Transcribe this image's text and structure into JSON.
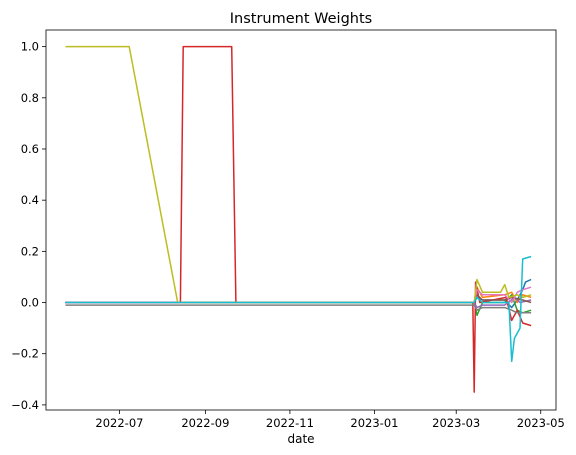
{
  "chart_data": {
    "type": "line",
    "title": "Instrument Weights",
    "xlabel": "date",
    "ylabel": "",
    "xlim": [
      "2022-05-09",
      "2023-05-12"
    ],
    "ylim": [
      -0.42,
      1.065
    ],
    "x_ticks": [
      {
        "date": "2022-07-01",
        "label": "2022-07"
      },
      {
        "date": "2022-09-01",
        "label": "2022-09"
      },
      {
        "date": "2022-11-01",
        "label": "2022-11"
      },
      {
        "date": "2023-01-01",
        "label": "2023-01"
      },
      {
        "date": "2023-03-01",
        "label": "2023-03"
      },
      {
        "date": "2023-05-01",
        "label": "2023-05"
      }
    ],
    "y_ticks": [
      {
        "value": 1.0,
        "label": "1.0"
      },
      {
        "value": 0.8,
        "label": "0.8"
      },
      {
        "value": 0.6,
        "label": "0.6"
      },
      {
        "value": 0.4,
        "label": "0.4"
      },
      {
        "value": 0.2,
        "label": "0.2"
      },
      {
        "value": 0.0,
        "label": "0.0"
      },
      {
        "value": -0.2,
        "label": "−0.2"
      },
      {
        "value": -0.4,
        "label": "−0.4"
      }
    ],
    "grid": false,
    "legend": "none",
    "series": [
      {
        "color": "#1f77b4",
        "points": [
          [
            "2022-05-23",
            0
          ],
          [
            "2023-03-14",
            0
          ],
          [
            "2023-03-16",
            0.02
          ],
          [
            "2023-03-20",
            0.01
          ],
          [
            "2023-04-05",
            0.01
          ],
          [
            "2023-04-10",
            -0.02
          ],
          [
            "2023-04-14",
            0.01
          ],
          [
            "2023-04-18",
            0.05
          ],
          [
            "2023-04-20",
            0.08
          ],
          [
            "2023-04-24",
            0.09
          ]
        ]
      },
      {
        "color": "#ff7f0e",
        "points": [
          [
            "2022-05-23",
            0
          ],
          [
            "2023-03-14",
            0
          ],
          [
            "2023-03-16",
            0.06
          ],
          [
            "2023-03-20",
            0.02
          ],
          [
            "2023-04-05",
            0.03
          ],
          [
            "2023-04-10",
            0.04
          ],
          [
            "2023-04-14",
            0.0
          ],
          [
            "2023-04-18",
            0.03
          ],
          [
            "2023-04-24",
            0.02
          ]
        ]
      },
      {
        "color": "#2ca02c",
        "points": [
          [
            "2022-05-23",
            0
          ],
          [
            "2023-03-14",
            0
          ],
          [
            "2023-03-16",
            -0.05
          ],
          [
            "2023-03-20",
            0.0
          ],
          [
            "2023-04-05",
            0.0
          ],
          [
            "2023-04-10",
            0.03
          ],
          [
            "2023-04-14",
            -0.03
          ],
          [
            "2023-04-18",
            -0.04
          ],
          [
            "2023-04-24",
            -0.03
          ]
        ]
      },
      {
        "color": "#d62728",
        "points": [
          [
            "2022-05-23",
            0
          ],
          [
            "2022-08-14",
            0
          ],
          [
            "2022-08-16",
            1.0
          ],
          [
            "2022-09-20",
            1.0
          ],
          [
            "2022-09-23",
            0
          ],
          [
            "2023-03-13",
            0
          ],
          [
            "2023-03-14",
            -0.35
          ],
          [
            "2023-03-15",
            0.08
          ],
          [
            "2023-03-18",
            0.0
          ],
          [
            "2023-04-06",
            0.02
          ],
          [
            "2023-04-10",
            -0.07
          ],
          [
            "2023-04-14",
            -0.03
          ],
          [
            "2023-04-18",
            -0.08
          ],
          [
            "2023-04-24",
            -0.09
          ]
        ]
      },
      {
        "color": "#9467bd",
        "points": [
          [
            "2022-05-23",
            0
          ],
          [
            "2023-03-14",
            0
          ],
          [
            "2023-03-16",
            -0.02
          ],
          [
            "2023-03-20",
            -0.01
          ],
          [
            "2023-04-05",
            -0.01
          ],
          [
            "2023-04-12",
            0.02
          ],
          [
            "2023-04-16",
            0.0
          ],
          [
            "2023-04-24",
            0.01
          ]
        ]
      },
      {
        "color": "#8c564b",
        "points": [
          [
            "2022-05-23",
            0
          ],
          [
            "2023-03-14",
            0
          ],
          [
            "2023-03-16",
            0.03
          ],
          [
            "2023-03-20",
            0.01
          ],
          [
            "2023-04-05",
            0.01
          ],
          [
            "2023-04-10",
            0.02
          ],
          [
            "2023-04-18",
            0.01
          ],
          [
            "2023-04-24",
            0.0
          ]
        ]
      },
      {
        "color": "#e377c2",
        "points": [
          [
            "2022-05-23",
            0
          ],
          [
            "2023-03-14",
            0
          ],
          [
            "2023-03-16",
            0.05
          ],
          [
            "2023-03-20",
            0.03
          ],
          [
            "2023-04-05",
            0.03
          ],
          [
            "2023-04-10",
            0.0
          ],
          [
            "2023-04-14",
            0.04
          ],
          [
            "2023-04-18",
            0.05
          ],
          [
            "2023-04-24",
            0.06
          ]
        ]
      },
      {
        "color": "#7f7f7f",
        "points": [
          [
            "2022-05-23",
            -0.01
          ],
          [
            "2023-03-14",
            -0.01
          ],
          [
            "2023-03-16",
            -0.03
          ],
          [
            "2023-03-20",
            -0.02
          ],
          [
            "2023-04-05",
            -0.02
          ],
          [
            "2023-04-10",
            -0.03
          ],
          [
            "2023-04-14",
            -0.04
          ],
          [
            "2023-04-18",
            -0.04
          ],
          [
            "2023-04-24",
            -0.04
          ]
        ]
      },
      {
        "color": "#bcbd22",
        "points": [
          [
            "2022-05-23",
            1.0
          ],
          [
            "2022-07-08",
            1.0
          ],
          [
            "2022-08-12",
            0
          ],
          [
            "2023-03-14",
            0
          ],
          [
            "2023-03-16",
            0.09
          ],
          [
            "2023-03-20",
            0.04
          ],
          [
            "2023-04-02",
            0.04
          ],
          [
            "2023-04-05",
            0.07
          ],
          [
            "2023-04-08",
            0.02
          ],
          [
            "2023-04-14",
            0.03
          ],
          [
            "2023-04-18",
            0.02
          ],
          [
            "2023-04-24",
            0.03
          ]
        ]
      },
      {
        "color": "#17becf",
        "points": [
          [
            "2022-05-23",
            0
          ],
          [
            "2023-03-14",
            0
          ],
          [
            "2023-03-16",
            0.02
          ],
          [
            "2023-03-20",
            0.0
          ],
          [
            "2023-04-08",
            0.0
          ],
          [
            "2023-04-10",
            -0.23
          ],
          [
            "2023-04-12",
            -0.14
          ],
          [
            "2023-04-16",
            -0.1
          ],
          [
            "2023-04-18",
            0.17
          ],
          [
            "2023-04-24",
            0.18
          ]
        ]
      }
    ]
  }
}
